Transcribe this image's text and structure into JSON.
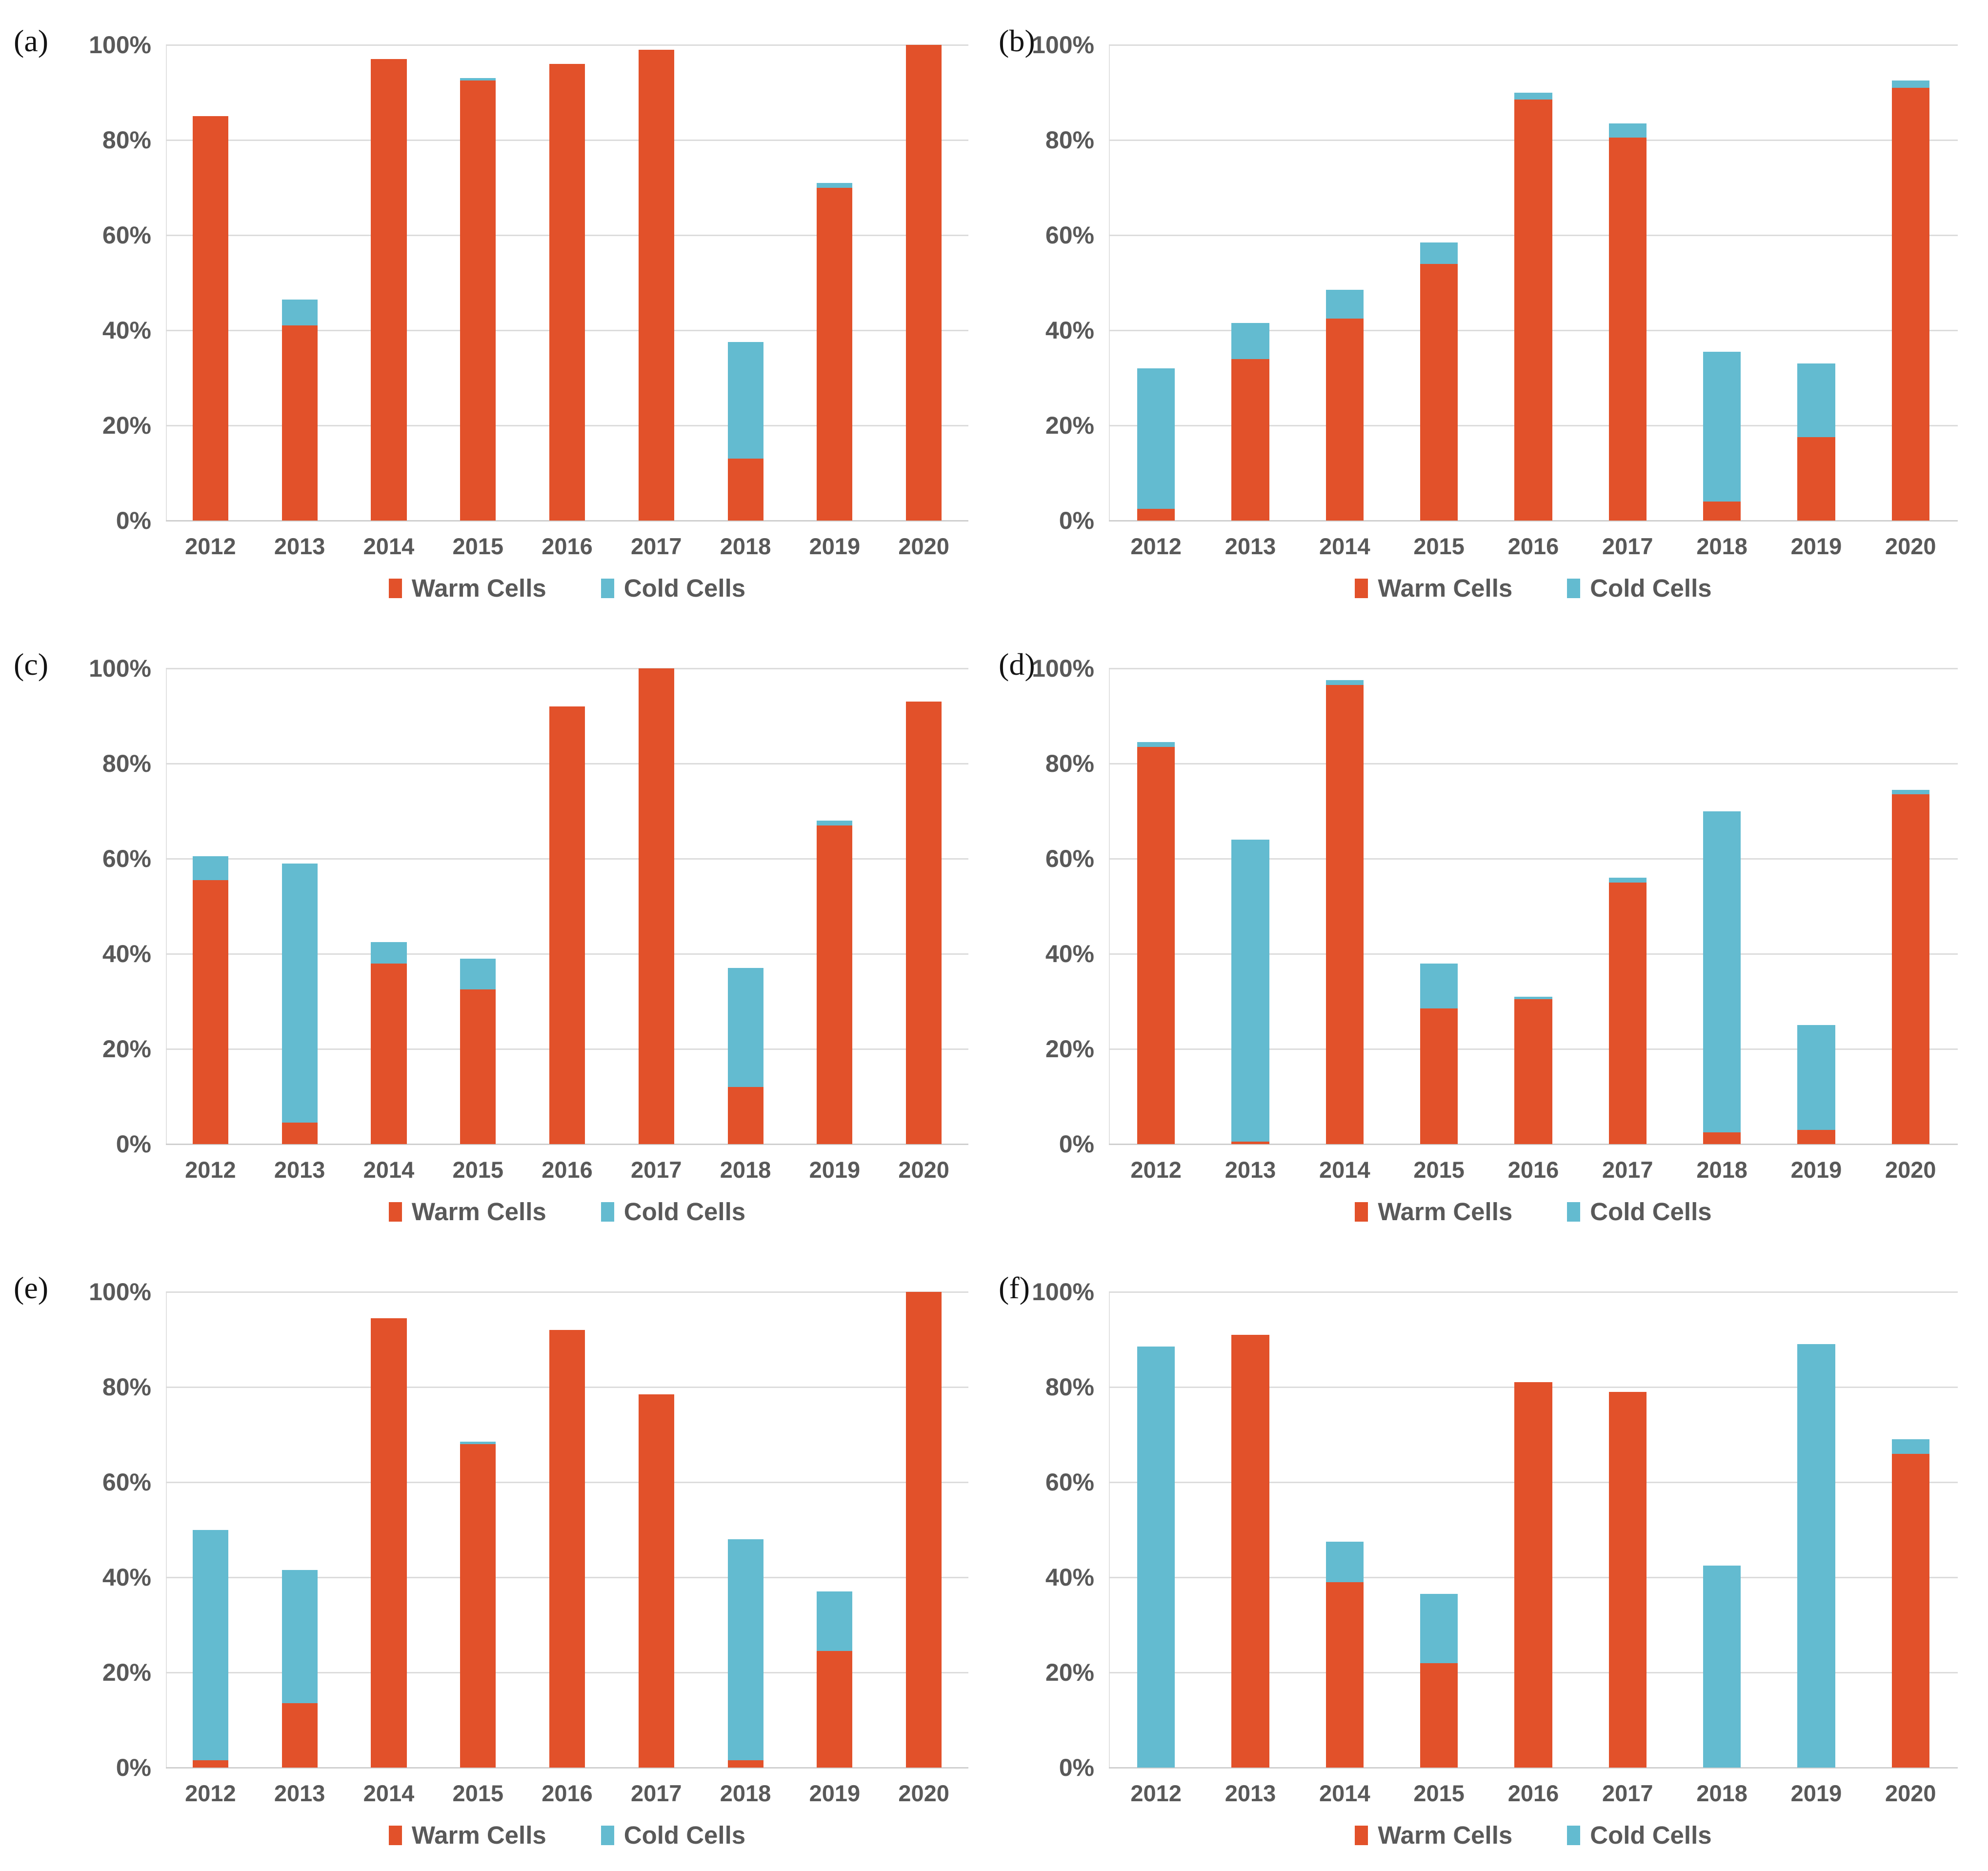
{
  "figure": {
    "background": "#ffffff"
  },
  "colors": {
    "warm": "#e2512a",
    "cold": "#63bbd0",
    "axis_text": "#595959",
    "gridline": "#dcdcdc",
    "panel_label": "#141414"
  },
  "legend": {
    "warm_label": "Warm Cells",
    "cold_label": "Cold Cells"
  },
  "y_axis": {
    "ticks": [
      "100%",
      "80%",
      "60%",
      "40%",
      "20%",
      "0%"
    ],
    "tick_values": [
      100,
      80,
      60,
      40,
      20,
      0
    ]
  },
  "chart_data": [
    {
      "type": "bar",
      "stacked": true,
      "panel_label": "(a)",
      "title": "",
      "xlabel": "",
      "ylabel": "",
      "ylim": [
        0,
        100
      ],
      "grid": true,
      "legend_position": "bottom",
      "categories": [
        "2012",
        "2013",
        "2014",
        "2015",
        "2016",
        "2017",
        "2018",
        "2019",
        "2020"
      ],
      "series": [
        {
          "name": "Warm Cells",
          "values": [
            85,
            41,
            97,
            92.5,
            96,
            99,
            13,
            70,
            100
          ]
        },
        {
          "name": "Cold Cells",
          "values": [
            0,
            5.5,
            0,
            0.5,
            0,
            0,
            24.5,
            1,
            0
          ]
        }
      ]
    },
    {
      "type": "bar",
      "stacked": true,
      "panel_label": "(b)",
      "title": "",
      "xlabel": "",
      "ylabel": "",
      "ylim": [
        0,
        100
      ],
      "grid": true,
      "legend_position": "bottom",
      "categories": [
        "2012",
        "2013",
        "2014",
        "2015",
        "2016",
        "2017",
        "2018",
        "2019",
        "2020"
      ],
      "series": [
        {
          "name": "Warm Cells",
          "values": [
            2.5,
            34,
            42.5,
            54,
            88.5,
            80.5,
            4,
            17.5,
            91
          ]
        },
        {
          "name": "Cold Cells",
          "values": [
            29.5,
            7.5,
            6,
            4.5,
            1.5,
            3,
            31.5,
            15.5,
            1.5
          ]
        }
      ]
    },
    {
      "type": "bar",
      "stacked": true,
      "panel_label": "(c)",
      "title": "",
      "xlabel": "",
      "ylabel": "",
      "ylim": [
        0,
        100
      ],
      "grid": true,
      "legend_position": "bottom",
      "categories": [
        "2012",
        "2013",
        "2014",
        "2015",
        "2016",
        "2017",
        "2018",
        "2019",
        "2020"
      ],
      "series": [
        {
          "name": "Warm Cells",
          "values": [
            55.5,
            4.5,
            38,
            32.5,
            92,
            100,
            12,
            67,
            93
          ]
        },
        {
          "name": "Cold Cells",
          "values": [
            5,
            54.5,
            4.5,
            6.5,
            0,
            0,
            25,
            1,
            0
          ]
        }
      ]
    },
    {
      "type": "bar",
      "stacked": true,
      "panel_label": "(d)",
      "title": "",
      "xlabel": "",
      "ylabel": "",
      "ylim": [
        0,
        100
      ],
      "grid": true,
      "legend_position": "bottom",
      "categories": [
        "2012",
        "2013",
        "2014",
        "2015",
        "2016",
        "2017",
        "2018",
        "2019",
        "2020"
      ],
      "series": [
        {
          "name": "Warm Cells",
          "values": [
            83.5,
            0.5,
            96.5,
            28.5,
            30.5,
            55,
            2.5,
            3,
            73.5
          ]
        },
        {
          "name": "Cold Cells",
          "values": [
            1,
            63.5,
            1,
            9.5,
            0.5,
            1,
            67.5,
            22,
            1
          ]
        }
      ]
    },
    {
      "type": "bar",
      "stacked": true,
      "panel_label": "(e)",
      "title": "",
      "xlabel": "",
      "ylabel": "",
      "ylim": [
        0,
        100
      ],
      "grid": true,
      "legend_position": "bottom",
      "categories": [
        "2012",
        "2013",
        "2014",
        "2015",
        "2016",
        "2017",
        "2018",
        "2019",
        "2020"
      ],
      "series": [
        {
          "name": "Warm Cells",
          "values": [
            1.5,
            13.5,
            94.5,
            68,
            92,
            78.5,
            1.5,
            24.5,
            100
          ]
        },
        {
          "name": "Cold Cells",
          "values": [
            48.5,
            28,
            0,
            0.5,
            0,
            0,
            46.5,
            12.5,
            0
          ]
        }
      ]
    },
    {
      "type": "bar",
      "stacked": true,
      "panel_label": "(f)",
      "title": "",
      "xlabel": "",
      "ylabel": "",
      "ylim": [
        0,
        100
      ],
      "grid": true,
      "legend_position": "bottom",
      "categories": [
        "2012",
        "2013",
        "2014",
        "2015",
        "2016",
        "2017",
        "2018",
        "2019",
        "2020"
      ],
      "series": [
        {
          "name": "Warm Cells",
          "values": [
            0,
            91,
            39,
            22,
            81,
            79,
            0,
            0,
            66
          ]
        },
        {
          "name": "Cold Cells",
          "values": [
            88.5,
            0,
            8.5,
            14.5,
            0,
            0,
            42.5,
            89,
            3
          ]
        }
      ]
    }
  ]
}
